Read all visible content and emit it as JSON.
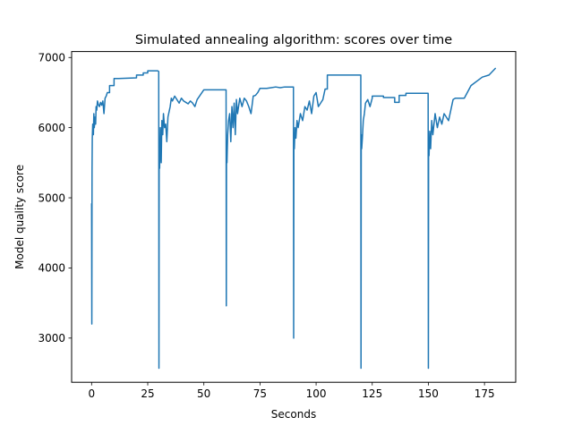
{
  "chart_data": {
    "type": "line",
    "title": "Simulated annealing algorithm: scores over time",
    "xlabel": "Seconds",
    "ylabel": "Model quality score",
    "xlim": [
      -8.9,
      188.9
    ],
    "ylim": [
      2370,
      7085
    ],
    "xticks": [
      0,
      25,
      50,
      75,
      100,
      125,
      150,
      175
    ],
    "yticks": [
      3000,
      4000,
      5000,
      6000,
      7000
    ],
    "grid": false,
    "legend": "none",
    "line_color": "#1f77b4",
    "series": [
      {
        "x": [
          0,
          0.1,
          0.2,
          0.3,
          0.5,
          0.8,
          1.0,
          1.2,
          1.5,
          1.8,
          2.0,
          2.3,
          2.6,
          3.0,
          3.5,
          4.0,
          4.5,
          5.0,
          5.5,
          6.0,
          6.5,
          7.0,
          8.0,
          8.0,
          10.0,
          10.0,
          12.0,
          12.0,
          20.0,
          20.0,
          23.0,
          23.0,
          25.0,
          25.0,
          29.5,
          29.9,
          30.0,
          30.1,
          30.3,
          30.6,
          31.0,
          31.3,
          31.7,
          32.0,
          32.5,
          33.0,
          33.5,
          34.0,
          35.0,
          35.5,
          36.0,
          37.0,
          38.0,
          39.0,
          40.0,
          41.0,
          42.0,
          43.0,
          44.0,
          45.0,
          46.0,
          47.0,
          50.0,
          50.0,
          59.9,
          60.0,
          60.1,
          60.3,
          60.6,
          61.0,
          61.5,
          62.0,
          62.5,
          63.0,
          63.5,
          64.0,
          64.5,
          65.0,
          66.0,
          67.0,
          68.0,
          69.0,
          70.0,
          71.0,
          72.0,
          73.0,
          74.0,
          75.0,
          75.0,
          76.0,
          78.0,
          80.0,
          82.0,
          84.0,
          86.0,
          89.9,
          90.0,
          90.1,
          90.3,
          90.6,
          91.0,
          91.5,
          92.0,
          93.0,
          94.0,
          95.0,
          96.0,
          97.0,
          98.0,
          99.0,
          100.0,
          101.0,
          102.0,
          103.0,
          104.0,
          105.0,
          105.0,
          119.9,
          120.0,
          120.1,
          120.3,
          120.6,
          121.0,
          121.5,
          122.0,
          123.0,
          124.0,
          125.0,
          125.0,
          130.0,
          130.0,
          135.0,
          135.0,
          137.0,
          137.0,
          140.0,
          140.0,
          149.9,
          150.0,
          150.1,
          150.3,
          150.6,
          151.0,
          151.5,
          152.0,
          153.0,
          154.0,
          155.0,
          156.0,
          157.0,
          158.0,
          159.0,
          160.0,
          161.0,
          162.0,
          162.0,
          166.0,
          166.0,
          169.0,
          169.0,
          174.0,
          174.0,
          177.0,
          177.0,
          180.0
        ],
        "y": [
          4920,
          3200,
          5400,
          5850,
          6050,
          5900,
          6200,
          6000,
          6150,
          6050,
          6300,
          6250,
          6380,
          6330,
          6300,
          6360,
          6320,
          6380,
          6200,
          6420,
          6450,
          6500,
          6500,
          6600,
          6600,
          6700,
          6700,
          6700,
          6710,
          6750,
          6750,
          6780,
          6780,
          6810,
          6810,
          6800,
          2570,
          5800,
          5420,
          6000,
          5500,
          6100,
          5900,
          6200,
          6000,
          6050,
          5800,
          6150,
          6300,
          6420,
          6380,
          6450,
          6400,
          6350,
          6420,
          6380,
          6360,
          6340,
          6380,
          6350,
          6300,
          6400,
          6540,
          6540,
          6540,
          3460,
          5700,
          5500,
          5900,
          6100,
          6200,
          5800,
          6300,
          6000,
          6350,
          5900,
          6400,
          6200,
          6420,
          6300,
          6420,
          6380,
          6300,
          6200,
          6450,
          6460,
          6500,
          6560,
          6560,
          6560,
          6560,
          6570,
          6580,
          6570,
          6580,
          6580,
          3000,
          5900,
          5700,
          6000,
          5850,
          6100,
          6000,
          6200,
          6100,
          6300,
          6250,
          6380,
          6200,
          6450,
          6500,
          6300,
          6350,
          6400,
          6550,
          6550,
          6750,
          6750,
          2570,
          5900,
          5700,
          5850,
          6100,
          6200,
          6350,
          6400,
          6300,
          6420,
          6450,
          6450,
          6430,
          6430,
          6360,
          6360,
          6460,
          6460,
          6490,
          6490,
          2570,
          5800,
          5600,
          5950,
          5700,
          6100,
          5900,
          6200,
          6000,
          6150,
          6050,
          6200,
          6150,
          6100,
          6250,
          6400,
          6420,
          6420,
          6420,
          6420,
          6600,
          6600,
          6720,
          6720,
          6750,
          6750,
          6850
        ]
      }
    ]
  }
}
